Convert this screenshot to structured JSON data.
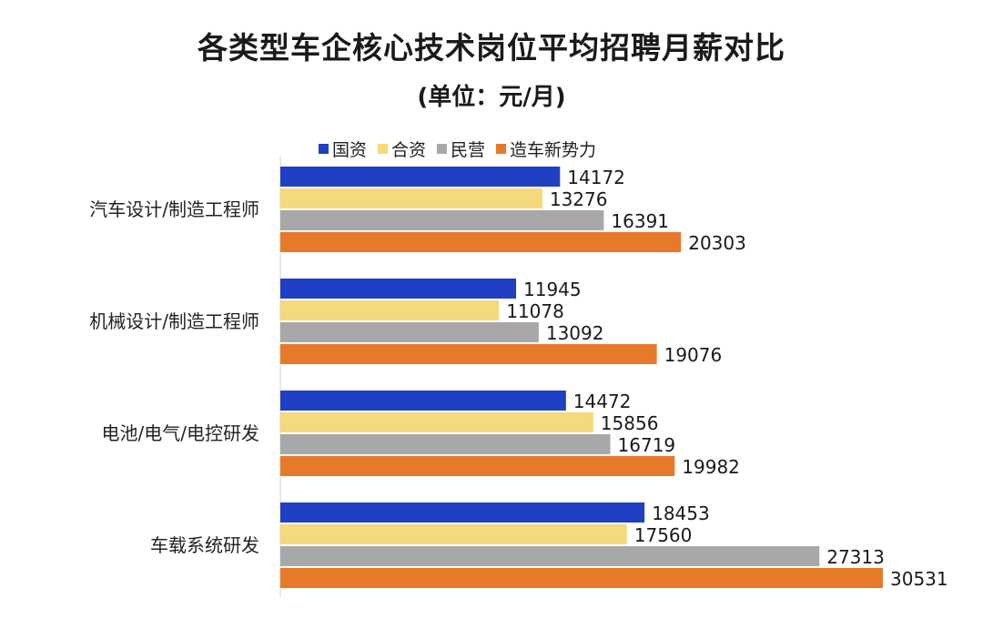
{
  "chart_data": {
    "type": "bar",
    "orientation": "horizontal",
    "title": "各类型车企核心技术岗位平均招聘月薪对比",
    "subtitle": "(单位：元/月)",
    "categories": [
      "汽车设计/制造工程师",
      "机械设计/制造工程师",
      "电池/电气/电控研发",
      "车载系统研发"
    ],
    "series": [
      {
        "name": "国资",
        "color": "#1f3fc4",
        "values": [
          14172,
          11945,
          14472,
          18453
        ]
      },
      {
        "name": "合资",
        "color": "#f5d97a",
        "values": [
          13276,
          11078,
          15856,
          17560
        ]
      },
      {
        "name": "民营",
        "color": "#a8a8a8",
        "values": [
          16391,
          13092,
          16719,
          27313
        ]
      },
      {
        "name": "造车新势力",
        "color": "#e8792a",
        "values": [
          20303,
          19076,
          19982,
          30531
        ]
      }
    ],
    "xlim": [
      0,
      30531
    ],
    "legend": "top",
    "grid": false,
    "xlabel": "",
    "ylabel": ""
  }
}
